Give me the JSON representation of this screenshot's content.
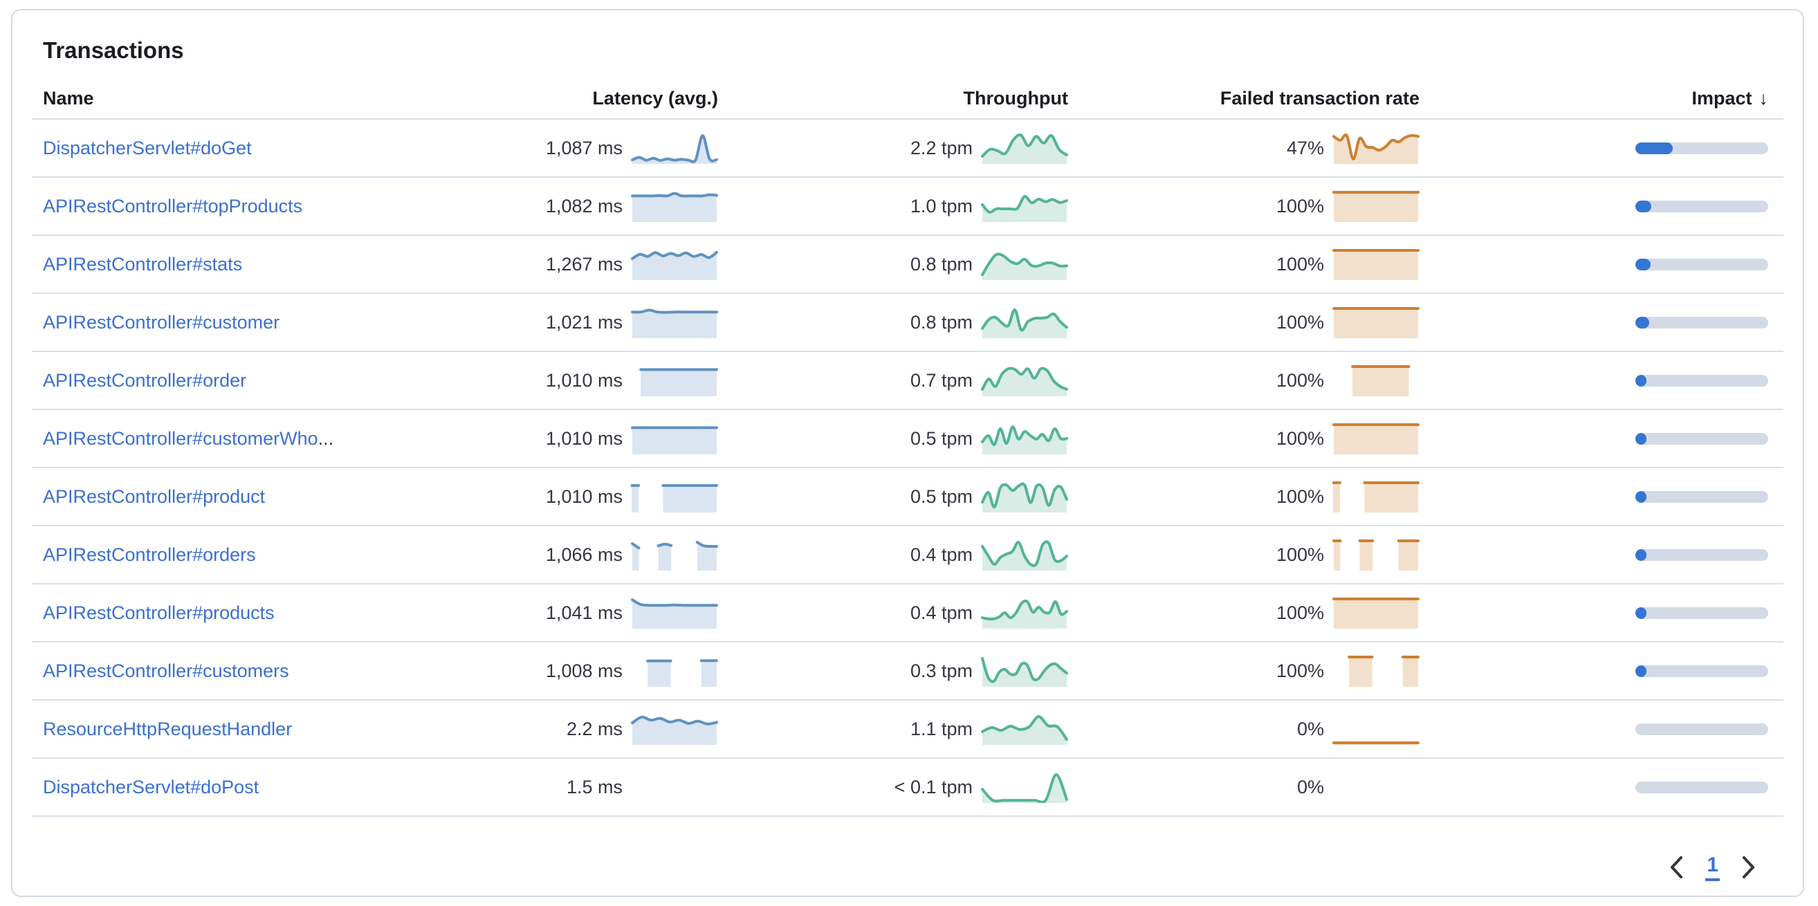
{
  "panel": {
    "title": "Transactions"
  },
  "table": {
    "columns": [
      {
        "id": "name",
        "label": "Name"
      },
      {
        "id": "latency",
        "label": "Latency (avg.)"
      },
      {
        "id": "throughput",
        "label": "Throughput"
      },
      {
        "id": "failed",
        "label": "Failed transaction rate"
      },
      {
        "id": "impact",
        "label": "Impact",
        "sort_icon": "↓",
        "sorted": "desc"
      }
    ],
    "rows": [
      {
        "name": "DispatcherServlet#doGet",
        "name_suffix": "",
        "latency": "1,087 ms",
        "throughput": "2.2 tpm",
        "failed_rate": "47%",
        "impact_pct": 28,
        "spark_latency": [
          0.07,
          0.16,
          0.06,
          0.13,
          0.05,
          0.11,
          0.06,
          0.09,
          0.06,
          0.07,
          0.95,
          0.1,
          0.08
        ],
        "spark_throughput": [
          0.2,
          0.45,
          0.4,
          0.3,
          0.78,
          0.97,
          0.58,
          0.92,
          0.68,
          0.95,
          0.45,
          0.25
        ],
        "spark_failed": [
          0.92,
          0.78,
          0.95,
          0.1,
          0.85,
          0.55,
          0.52,
          0.42,
          0.55,
          0.78,
          0.72,
          0.88,
          0.95,
          0.92
        ]
      },
      {
        "name": "APIRestController#topProducts",
        "name_suffix": "",
        "latency": "1,082 ms",
        "throughput": "1.0 tpm",
        "failed_rate": "100%",
        "impact_pct": 12.2,
        "spark_latency": [
          0.87,
          0.87,
          0.87,
          0.87,
          0.88,
          0.87,
          0.96,
          0.87,
          0.87,
          0.87,
          0.87,
          0.91,
          0.89
        ],
        "spark_throughput": [
          0.55,
          0.28,
          0.4,
          0.4,
          0.4,
          0.42,
          0.85,
          0.62,
          0.75,
          0.66,
          0.74,
          0.63,
          0.7
        ],
        "spark_failed": [
          1,
          1,
          1,
          1,
          1,
          1,
          1,
          1,
          1,
          1
        ]
      },
      {
        "name": "APIRestController#stats",
        "name_suffix": "",
        "latency": "1,267 ms",
        "throughput": "0.8 tpm",
        "failed_rate": "100%",
        "impact_pct": 11.5,
        "spark_latency": [
          0.7,
          0.86,
          0.78,
          0.92,
          0.8,
          0.89,
          0.81,
          0.91,
          0.78,
          0.85,
          0.74,
          0.93
        ],
        "spark_throughput": [
          0.12,
          0.55,
          0.85,
          0.8,
          0.6,
          0.52,
          0.68,
          0.45,
          0.44,
          0.54,
          0.54,
          0.44,
          0.44
        ],
        "spark_failed": [
          1,
          1,
          1,
          1,
          1,
          1,
          1,
          1,
          1,
          1
        ]
      },
      {
        "name": "APIRestController#customer",
        "name_suffix": "",
        "latency": "1,021 ms",
        "throughput": "0.8 tpm",
        "failed_rate": "100%",
        "impact_pct": 10.4,
        "spark_latency": [
          0.87,
          0.87,
          0.94,
          0.87,
          0.86,
          0.87,
          0.87,
          0.87,
          0.87,
          0.87,
          0.87
        ],
        "spark_throughput": [
          0.28,
          0.6,
          0.68,
          0.48,
          0.38,
          0.95,
          0.22,
          0.52,
          0.64,
          0.65,
          0.68,
          0.8,
          0.52,
          0.32
        ],
        "spark_failed": [
          1,
          1,
          1,
          1,
          1,
          1,
          1,
          1,
          1,
          1
        ]
      },
      {
        "name": "APIRestController#order",
        "name_suffix": "",
        "latency": "1,010 ms",
        "throughput": "0.7 tpm",
        "failed_rate": "100%",
        "impact_pct": 8.2,
        "spark_latency": [
          null,
          0.89,
          0.89,
          0.89,
          0.89,
          0.89,
          0.89,
          0.89,
          0.89,
          0.89,
          0.89
        ],
        "spark_throughput": [
          0.18,
          0.55,
          0.28,
          0.72,
          0.92,
          0.9,
          0.72,
          0.92,
          0.58,
          0.92,
          0.85,
          0.48,
          0.28,
          0.18
        ],
        "spark_failed": [
          null,
          null,
          1,
          1,
          1,
          1,
          1,
          1,
          1,
          null
        ]
      },
      {
        "name": "APIRestController#customerWho",
        "name_suffix": "...",
        "latency": "1,010 ms",
        "throughput": "0.5 tpm",
        "failed_rate": "100%",
        "impact_pct": 6.3,
        "spark_latency": [
          0.89,
          0.89,
          0.89,
          0.89,
          0.89,
          0.89,
          0.89,
          0.89,
          0.89,
          0.89
        ],
        "spark_throughput": [
          0.38,
          0.6,
          0.28,
          0.85,
          0.32,
          0.92,
          0.48,
          0.75,
          0.6,
          0.48,
          0.65,
          0.42,
          0.85,
          0.5,
          0.5
        ],
        "spark_failed": [
          1,
          1,
          1,
          1,
          1,
          1,
          1,
          1,
          1,
          1
        ]
      },
      {
        "name": "APIRestController#product",
        "name_suffix": "",
        "latency": "1,010 ms",
        "throughput": "0.5 tpm",
        "failed_rate": "100%",
        "impact_pct": 5.7,
        "spark_latency": [
          0.9,
          null,
          null,
          null,
          0.9,
          0.9,
          0.9,
          0.9,
          0.9,
          0.9,
          0.9,
          0.9
        ],
        "spark_throughput": [
          0.3,
          0.65,
          0.12,
          0.82,
          0.92,
          0.72,
          0.88,
          0.92,
          0.28,
          0.88,
          0.82,
          0.18,
          0.75,
          0.85,
          0.4
        ],
        "spark_failed": [
          1,
          null,
          null,
          null,
          1,
          1,
          1,
          1,
          1,
          1,
          1,
          1
        ]
      },
      {
        "name": "APIRestController#orders",
        "name_suffix": "",
        "latency": "1,066 ms",
        "throughput": "0.4 tpm",
        "failed_rate": "100%",
        "impact_pct": 4.9,
        "spark_latency": [
          0.9,
          0.74,
          null,
          null,
          0.82,
          0.88,
          0.83,
          null,
          null,
          null,
          0.95,
          0.82,
          0.8,
          0.8
        ],
        "spark_throughput": [
          0.8,
          0.45,
          0.15,
          0.4,
          0.52,
          0.62,
          0.95,
          0.45,
          0.15,
          0.18,
          0.85,
          0.92,
          0.32,
          0.28,
          0.45
        ],
        "spark_failed": [
          1,
          1,
          null,
          null,
          1,
          1,
          1,
          null,
          null,
          null,
          1,
          1,
          1,
          1
        ]
      },
      {
        "name": "APIRestController#products",
        "name_suffix": "",
        "latency": "1,041 ms",
        "throughput": "0.4 tpm",
        "failed_rate": "100%",
        "impact_pct": 4.5,
        "spark_latency": [
          0.97,
          0.8,
          0.77,
          0.77,
          0.77,
          0.78,
          0.77,
          0.77,
          0.77,
          0.77,
          0.77
        ],
        "spark_throughput": [
          0.32,
          0.28,
          0.28,
          0.35,
          0.5,
          0.32,
          0.5,
          0.85,
          0.9,
          0.52,
          0.7,
          0.52,
          0.52,
          0.9,
          0.45,
          0.55
        ],
        "spark_failed": [
          1,
          1,
          1,
          1,
          1,
          1,
          1,
          1,
          1,
          1,
          1
        ]
      },
      {
        "name": "APIRestController#customers",
        "name_suffix": "",
        "latency": "1,008 ms",
        "throughput": "0.3 tpm",
        "failed_rate": "100%",
        "impact_pct": 4,
        "spark_latency": [
          null,
          null,
          0.86,
          0.86,
          0.86,
          0.86,
          null,
          null,
          null,
          0.87,
          0.87,
          0.87
        ],
        "spark_throughput": [
          0.95,
          0.28,
          0.12,
          0.45,
          0.55,
          0.38,
          0.4,
          0.75,
          0.7,
          0.22,
          0.22,
          0.5,
          0.7,
          0.75,
          0.58,
          0.42
        ],
        "spark_failed": [
          null,
          null,
          1,
          1,
          1,
          1,
          null,
          null,
          null,
          1,
          1,
          1
        ]
      },
      {
        "name": "ResourceHttpRequestHandler",
        "name_suffix": "",
        "latency": "2.2 ms",
        "throughput": "1.1 tpm",
        "failed_rate": "0%",
        "impact_pct": 0,
        "spark_latency": [
          0.72,
          0.93,
          0.82,
          0.88,
          0.75,
          0.82,
          0.7,
          0.78,
          0.68,
          0.74
        ],
        "spark_throughput": [
          0.4,
          0.55,
          0.45,
          0.6,
          0.48,
          0.58,
          0.95,
          0.62,
          0.58,
          0.12
        ],
        "spark_failed": [
          0,
          0,
          0,
          0,
          0,
          0,
          0,
          0,
          0,
          0
        ]
      },
      {
        "name": "DispatcherServlet#doPost",
        "name_suffix": "",
        "latency": "1.5 ms",
        "throughput": "< 0.1 tpm",
        "failed_rate": "0%",
        "impact_pct": 0,
        "spark_latency": null,
        "spark_throughput": [
          0.42,
          0.02,
          0.02,
          0.02,
          0.02,
          0.02,
          0.02,
          0.95,
          0.05
        ],
        "spark_failed": null
      }
    ]
  },
  "pagination": {
    "current_page": "1",
    "prev_icon": "chevron-left",
    "next_icon": "chevron-right"
  },
  "colors": {
    "text": "#343741",
    "heading": "#1a1c21",
    "link": "#3b70cf",
    "sep": "#d9dfeb",
    "impact_bar": "#3575d3",
    "impact_track": "#d3dae6",
    "lat_line": "#6092c0",
    "lat_fill": "#dbe5f1",
    "tpm_line": "#54b399",
    "tpm_fill": "#d9ece5",
    "fail_line": "#ce8032",
    "fail_fill": "#f2e0cc",
    "card_border": "#d3dae6"
  }
}
